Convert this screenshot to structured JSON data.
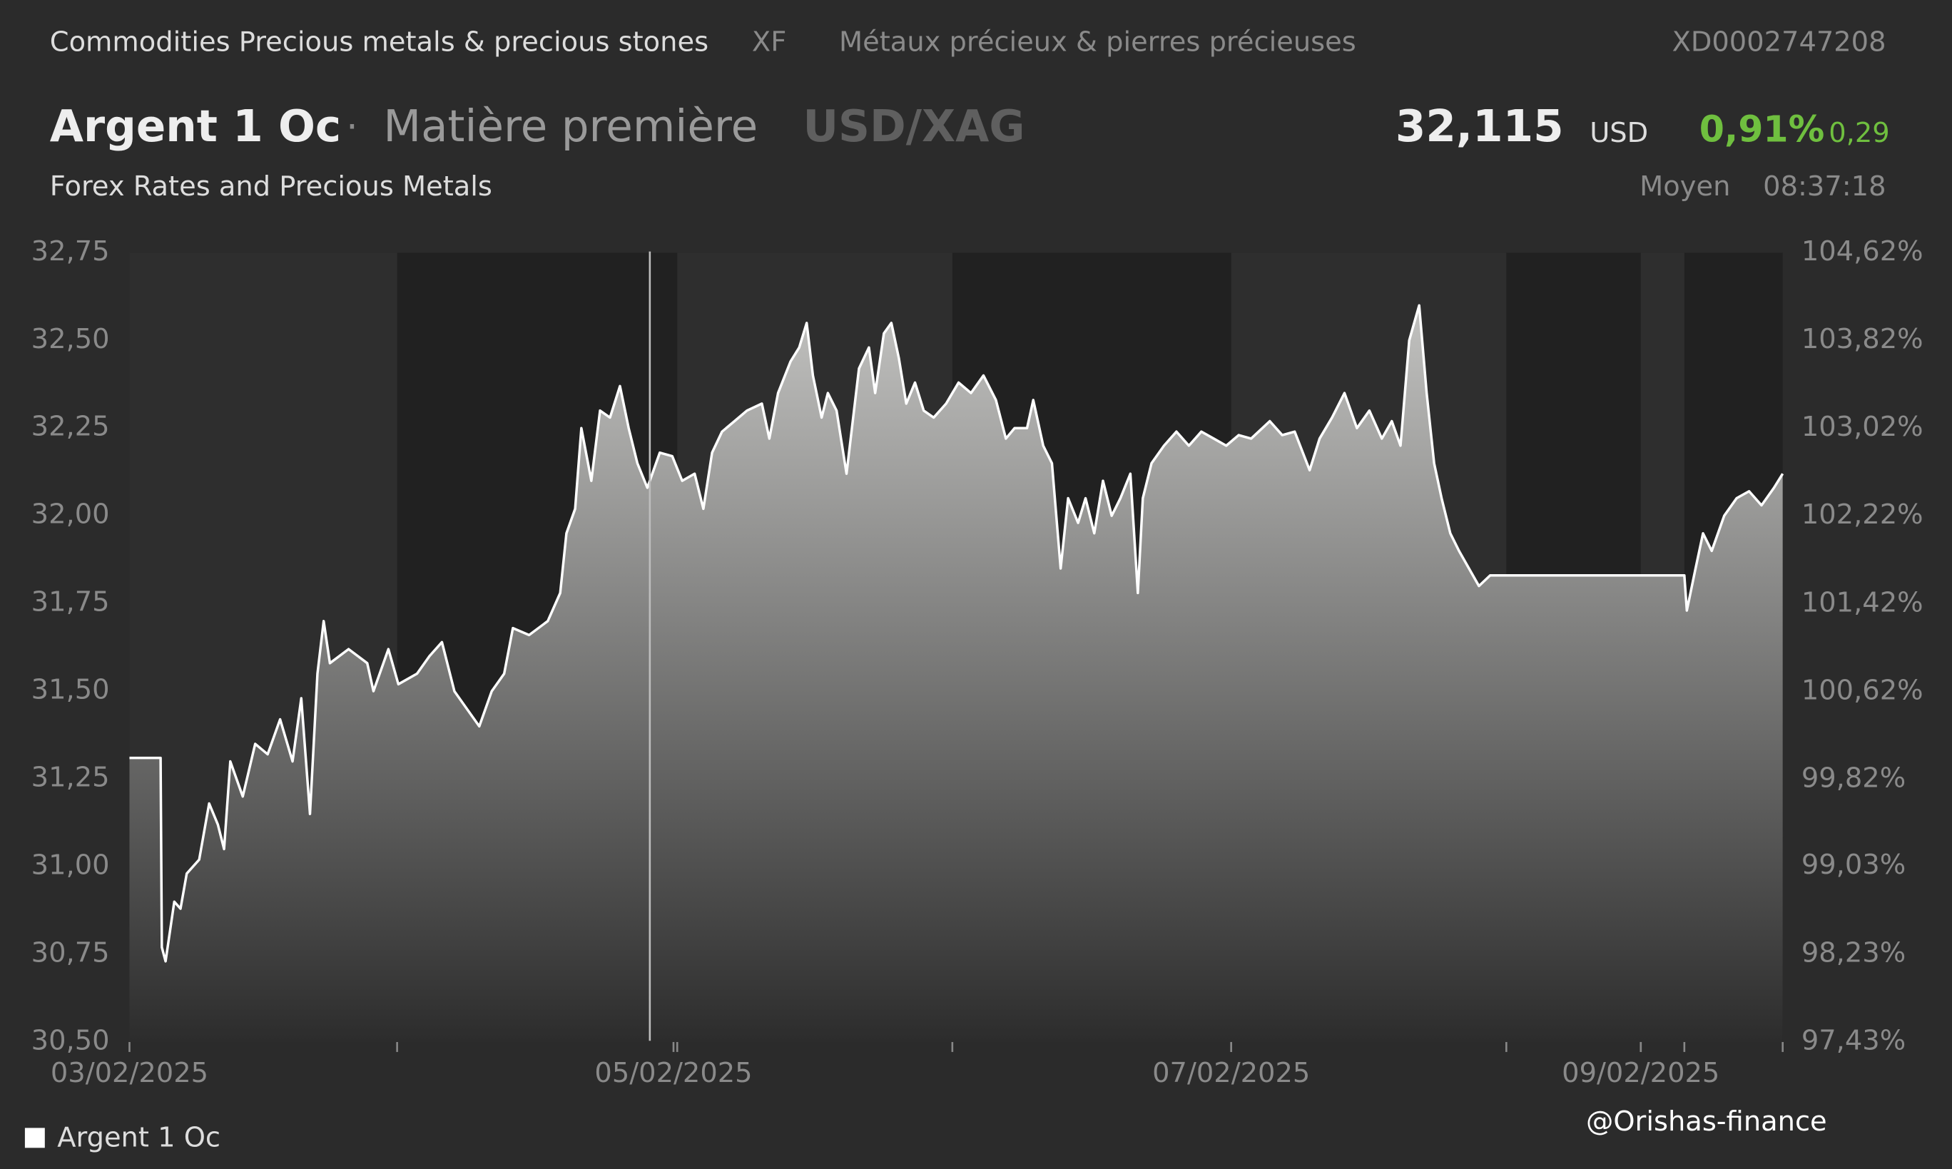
{
  "header": {
    "category": "Commodities Precious metals & precious stones",
    "exchange": "XF",
    "category_fr": "Métaux précieux & pierres précieuses",
    "isin": "XD0002747208",
    "name": "Argent 1 Oc",
    "separator": "·",
    "asset_type": "Matière première",
    "pair": "USD/XAG",
    "price": "32,115",
    "currency": "USD",
    "change_pct": "0,91%",
    "change_abs": "0,29",
    "source": "Forex Rates and Precious Metals",
    "price_type": "Moyen",
    "time": "08:37:18"
  },
  "watermark": "@Orishas-finance",
  "chart_data": {
    "type": "area",
    "xlim": [
      0,
      132.8
    ],
    "xticks": [
      {
        "value": 0,
        "label": "03/02/2025"
      },
      {
        "value": 43.7,
        "label": "05/02/2025"
      },
      {
        "value": 88.5,
        "label": "07/02/2025"
      },
      {
        "value": 121.4,
        "label": "09/02/2025"
      }
    ],
    "shaded": [
      [
        21.5,
        44.0
      ],
      [
        66.1,
        88.5
      ],
      [
        110.6,
        121.4
      ],
      [
        124.9,
        132.8
      ]
    ],
    "ylim": [
      30.5,
      32.75
    ],
    "yticks": [
      {
        "value": 30.5,
        "label": "30,50"
      },
      {
        "value": 30.75,
        "label": "30,75"
      },
      {
        "value": 31,
        "label": "31,00"
      },
      {
        "value": 31.25,
        "label": "31,25"
      },
      {
        "value": 31.5,
        "label": "31,50"
      },
      {
        "value": 31.75,
        "label": "31,75"
      },
      {
        "value": 32,
        "label": "32,00"
      },
      {
        "value": 32.25,
        "label": "32,25"
      },
      {
        "value": 32.5,
        "label": "32,50"
      },
      {
        "value": 32.75,
        "label": "32,75"
      }
    ],
    "y2lim": [
      97.43,
      104.62
    ],
    "y2ticks": [
      {
        "value": 97.43,
        "label": "97,43%"
      },
      {
        "value": 98.23,
        "label": "98,23%"
      },
      {
        "value": 99.03,
        "label": "99,03%"
      },
      {
        "value": 99.82,
        "label": "99,82%"
      },
      {
        "value": 100.62,
        "label": "100,62%"
      },
      {
        "value": 101.42,
        "label": "101,42%"
      },
      {
        "value": 102.22,
        "label": "102,22%"
      },
      {
        "value": 103.02,
        "label": "103,02%"
      },
      {
        "value": 103.82,
        "label": "103,82%"
      },
      {
        "value": 104.62,
        "label": "104,62%"
      }
    ],
    "x": [
      0,
      2.5,
      2.6,
      2.9,
      3.6,
      4.1,
      4.6,
      5.6,
      6.4,
      7.1,
      7.6,
      8.1,
      9.1,
      10.1,
      11.1,
      12.1,
      13.1,
      13.8,
      14.5,
      15.1,
      15.6,
      16.1,
      17.6,
      19.1,
      19.6,
      20.8,
      21.6,
      23.1,
      24.1,
      25.1,
      26.1,
      27.1,
      28.1,
      29.1,
      30.1,
      30.8,
      32.1,
      33.6,
      34.6,
      35.1,
      35.8,
      36.3,
      37.1,
      37.8,
      38.6,
      39.4,
      40.1,
      40.8,
      41.6,
      42.6,
      43.6,
      44.4,
      45.4,
      46.1,
      46.8,
      47.6,
      48.6,
      49.6,
      50.8,
      51.4,
      52.1,
      53.1,
      53.8,
      54.4,
      54.9,
      55.6,
      56.1,
      56.8,
      57.6,
      58.6,
      59.4,
      59.9,
      60.6,
      61.2,
      61.8,
      62.4,
      63.1,
      63.8,
      64.6,
      65.6,
      66.6,
      67.6,
      68.6,
      69.6,
      70.4,
      71.1,
      72.1,
      72.6,
      73.4,
      74.1,
      74.8,
      75.4,
      76.2,
      76.8,
      77.5,
      78.2,
      78.9,
      79.6,
      80.4,
      81.0,
      81.4,
      82.1,
      83.1,
      84.1,
      85.1,
      86.1,
      87.1,
      88.1,
      89.1,
      90.1,
      91.6,
      92.6,
      93.6,
      94.8,
      95.6,
      96.6,
      97.6,
      98.6,
      99.6,
      100.6,
      101.4,
      102.1,
      102.8,
      103.6,
      104.2,
      104.8,
      105.4,
      106.1,
      106.8,
      107.6,
      108.4,
      109.3,
      124.9,
      125.1,
      125.8,
      126.4,
      127.1,
      128.1,
      129.1,
      130.1,
      131.1,
      132.1,
      132.8
    ],
    "series": [
      {
        "name": "Argent 1 Oc",
        "color": "#ffffff",
        "values": [
          31.31,
          31.31,
          30.77,
          30.73,
          30.9,
          30.88,
          30.98,
          31.02,
          31.18,
          31.12,
          31.05,
          31.3,
          31.2,
          31.35,
          31.32,
          31.42,
          31.3,
          31.48,
          31.15,
          31.55,
          31.7,
          31.58,
          31.62,
          31.58,
          31.5,
          31.62,
          31.52,
          31.55,
          31.6,
          31.64,
          31.5,
          31.45,
          31.4,
          31.5,
          31.55,
          31.68,
          31.66,
          31.7,
          31.78,
          31.95,
          32.02,
          32.25,
          32.1,
          32.3,
          32.28,
          32.37,
          32.25,
          32.15,
          32.08,
          32.18,
          32.17,
          32.1,
          32.12,
          32.02,
          32.18,
          32.24,
          32.27,
          32.3,
          32.32,
          32.22,
          32.35,
          32.44,
          32.48,
          32.55,
          32.4,
          32.28,
          32.35,
          32.3,
          32.12,
          32.42,
          32.48,
          32.35,
          32.52,
          32.55,
          32.45,
          32.32,
          32.38,
          32.3,
          32.28,
          32.32,
          32.38,
          32.35,
          32.4,
          32.33,
          32.22,
          32.25,
          32.25,
          32.33,
          32.2,
          32.15,
          31.85,
          32.05,
          31.98,
          32.05,
          31.95,
          32.1,
          32.0,
          32.05,
          32.12,
          31.78,
          32.05,
          32.15,
          32.2,
          32.24,
          32.2,
          32.24,
          32.22,
          32.2,
          32.23,
          32.22,
          32.27,
          32.23,
          32.24,
          32.13,
          32.22,
          32.28,
          32.35,
          32.25,
          32.3,
          32.22,
          32.27,
          32.2,
          32.5,
          32.6,
          32.35,
          32.15,
          32.05,
          31.95,
          31.9,
          31.85,
          31.8,
          31.83,
          31.83,
          31.73,
          31.85,
          31.95,
          31.9,
          32.0,
          32.05,
          32.07,
          32.03,
          32.08,
          32.12
        ]
      }
    ]
  }
}
